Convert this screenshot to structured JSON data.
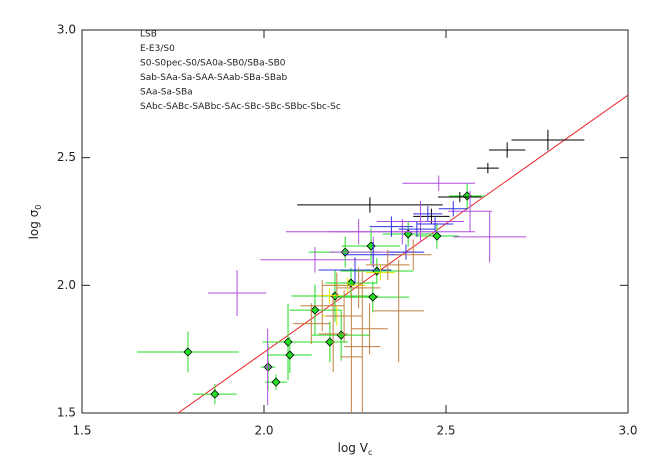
{
  "chart_data": {
    "type": "scatter",
    "x_label": {
      "text": "log V",
      "sub": "c"
    },
    "y_label": {
      "text": "log σ",
      "sub": "0"
    },
    "xlim": [
      1.5,
      3.0
    ],
    "ylim": [
      1.5,
      3.0
    ],
    "xticks": [
      1.5,
      {
        "value": 2,
        "label": "2.0"
      },
      2.5,
      {
        "value": 3,
        "label": "3.0"
      }
    ],
    "yticks": [
      1.5,
      {
        "value": 2,
        "label": "2.0"
      },
      2.5,
      {
        "value": 3,
        "label": "3.0"
      }
    ],
    "legend": "top-left",
    "fit_line": {
      "color": "#ee2020",
      "x": [
        1.764,
        3.0
      ],
      "values": [
        1.5,
        2.745
      ]
    },
    "series": [
      {
        "name": "LSB",
        "color": "#22dd22",
        "marker": "diamond",
        "x": [
          1.791,
          1.865,
          2.011,
          2.033,
          2.066,
          2.071,
          2.14,
          2.195,
          2.181,
          2.212,
          2.223,
          2.239,
          2.294,
          2.299,
          2.31,
          2.396,
          2.475,
          2.558
        ],
        "values": [
          1.739,
          1.574,
          1.68,
          1.621,
          1.778,
          1.727,
          1.903,
          1.958,
          1.778,
          1.805,
          2.13,
          2.009,
          2.154,
          1.954,
          2.056,
          2.201,
          2.193,
          2.35
        ],
        "xerr": [
          0.14,
          0.06,
          0.02,
          0.03,
          0.07,
          0.06,
          0.07,
          0.12,
          0.05,
          0.08,
          0.1,
          0.07,
          0.08,
          0.1,
          0.1,
          0.07,
          0.06,
          0.05
        ],
        "yerr": [
          0.08,
          0.04,
          0.09,
          0.03,
          0.15,
          0.07,
          0.1,
          0.1,
          0.08,
          0.1,
          0.06,
          0.06,
          0.07,
          0.06,
          0.05,
          0.05,
          0.05,
          0.05
        ]
      },
      {
        "name": "E-E3/S0",
        "color": "#000000",
        "marker": "none",
        "x": [
          2.291,
          2.538,
          2.615,
          2.668,
          2.78,
          2.46
        ],
        "values": [
          2.315,
          2.346,
          2.459,
          2.53,
          2.569,
          2.27
        ],
        "xerr": [
          0.2,
          0.06,
          0.03,
          0.05,
          0.1,
          0.05
        ],
        "yerr": [
          0.03,
          0.02,
          0.02,
          0.03,
          0.04,
          0.03
        ]
      },
      {
        "name": "S0-S0pec-S0/SA0a-SB0/SBa-SB0",
        "color": "#b04fe0",
        "marker": "none",
        "x": [
          1.926,
          2.01,
          2.14,
          2.3,
          2.38,
          2.43,
          2.566,
          2.48,
          2.62,
          2.26
        ],
        "values": [
          1.97,
          1.68,
          2.1,
          2.13,
          2.21,
          2.25,
          2.29,
          2.4,
          2.19,
          2.21
        ],
        "xerr": [
          0.08,
          0.01,
          0.15,
          0.12,
          0.2,
          0.12,
          0.06,
          0.1,
          0.1,
          0.2
        ],
        "yerr": [
          0.09,
          0.15,
          0.05,
          0.06,
          0.05,
          0.08,
          0.08,
          0.03,
          0.1,
          0.05
        ]
      },
      {
        "name": "Sab-SAa-Sa-SAA-SAab-SBa-SBab",
        "color": "#3030e0",
        "marker": "none",
        "x": [
          2.25,
          2.3,
          2.35,
          2.42,
          2.47,
          2.52,
          2.39,
          2.45
        ],
        "values": [
          2.06,
          2.12,
          2.23,
          2.22,
          2.24,
          2.3,
          2.13,
          2.28
        ],
        "xerr": [
          0.1,
          0.08,
          0.06,
          0.05,
          0.05,
          0.04,
          0.05,
          0.04
        ],
        "yerr": [
          0.05,
          0.05,
          0.04,
          0.03,
          0.03,
          0.03,
          0.03,
          0.03
        ]
      },
      {
        "name": "SAa-Sa-SBa",
        "color": "#e6e600",
        "marker": "none",
        "x": [
          2.18,
          2.2,
          2.23,
          2.32
        ],
        "values": [
          1.96,
          1.88,
          2.0,
          2.05
        ],
        "xerr": [
          0.03,
          0.04,
          0.05,
          0.04
        ],
        "yerr": [
          0.03,
          0.04,
          0.03,
          0.03
        ]
      },
      {
        "name": "SAbc-SABc-SABbc-SAc-SBc-SBc-SBbc-Sbc-Sc",
        "color": "#c08040",
        "marker": "none",
        "x": [
          2.13,
          2.16,
          2.19,
          2.22,
          2.24,
          2.26,
          2.29,
          2.34,
          2.37,
          2.41,
          2.2,
          2.27
        ],
        "values": [
          1.85,
          1.92,
          1.81,
          1.88,
          1.72,
          1.99,
          1.83,
          2.08,
          1.9,
          2.12,
          2.0,
          1.76
        ],
        "xerr": [
          0.05,
          0.06,
          0.04,
          0.05,
          0.03,
          0.06,
          0.05,
          0.06,
          0.07,
          0.05,
          0.04,
          0.05
        ],
        "yerr": [
          0.08,
          0.1,
          0.15,
          0.1,
          0.25,
          0.08,
          0.1,
          0.06,
          0.2,
          0.06,
          0.05,
          0.3
        ]
      }
    ]
  }
}
